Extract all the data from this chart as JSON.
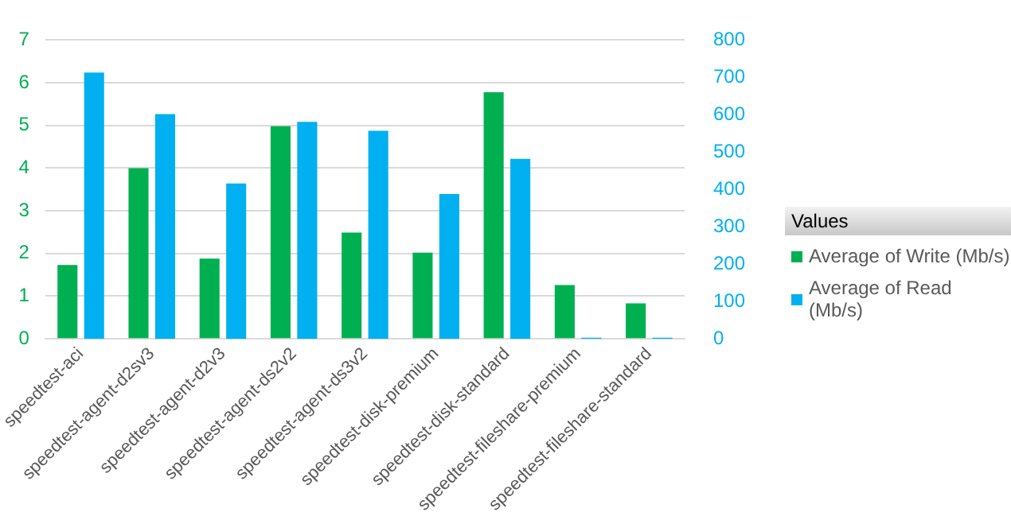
{
  "chart_data": {
    "type": "bar",
    "categories": [
      "speedtest-aci",
      "speedtest-agent-d2sv3",
      "speedtest-agent-d2v3",
      "speedtest-agent-ds2v2",
      "speedtest-agent-ds3v2",
      "speedtest-disk-premium",
      "speedtest-disk-standard",
      "speedtest-fileshare-premium",
      "speedtest-fileshare-standard"
    ],
    "series": [
      {
        "name": "Average of Write (Mb/s)",
        "color": "#00b050",
        "values": [
          1.73,
          4.0,
          1.88,
          4.98,
          2.49,
          2.02,
          5.78,
          1.26,
          0.83
        ]
      },
      {
        "name": "Average of Read (Mb/s)",
        "color": "#00b0f0",
        "axis": "y2",
        "values": [
          713,
          602,
          416,
          581,
          557,
          388,
          482,
          3,
          3
        ]
      }
    ],
    "ylim": [
      0,
      7
    ],
    "yticks": [
      0,
      1,
      2,
      3,
      4,
      5,
      6,
      7
    ],
    "y2lim": [
      0,
      800
    ],
    "y2ticks": [
      0,
      100,
      200,
      300,
      400,
      500,
      600,
      700,
      800
    ],
    "grid": "y",
    "legend": "right",
    "legend_title": "Values"
  }
}
